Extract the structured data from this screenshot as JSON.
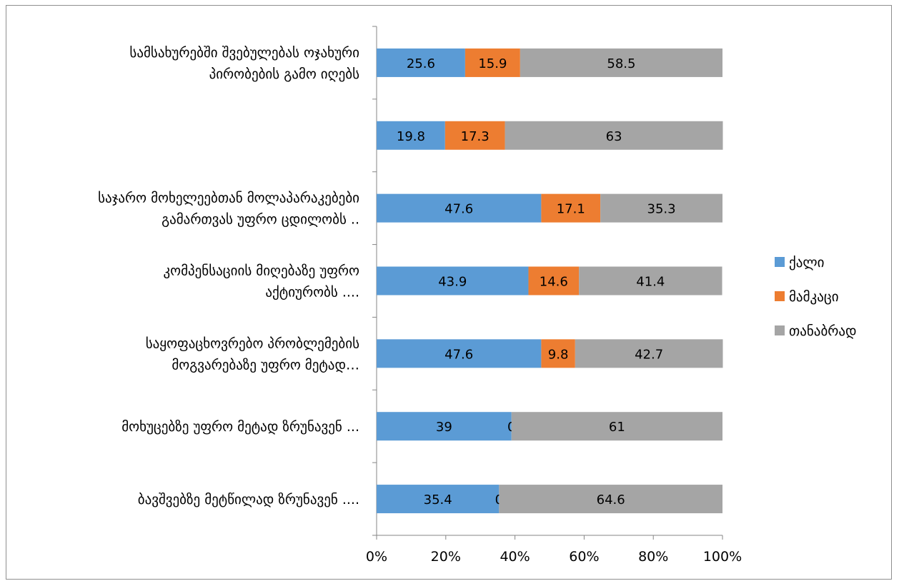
{
  "chart_data": {
    "type": "bar",
    "orientation": "horizontal",
    "stacked": "percent",
    "title": "",
    "xlabel": "",
    "ylabel": "",
    "xlim": [
      0,
      100
    ],
    "x_ticks": [
      "0%",
      "20%",
      "40%",
      "60%",
      "80%",
      "100%"
    ],
    "grid": false,
    "legend_position": "right",
    "categories": [
      [
        "სამსახურებში შვებულებას ოჯახური",
        "პირობების გამო იღებს"
      ],
      [],
      [
        "საჯარო მოხელეებთან მოლაპარაკებები",
        "გამართვას უფრო ცდილობს .."
      ],
      [
        "კომპენსაციის მიღებაზე უფრო",
        "აქტიურობს ...."
      ],
      [
        "საყოფაცხოვრებო პრობლემების",
        "მოგვარებაზე უფრო მეტად…"
      ],
      [
        "მოხუცებზე უფრო მეტად ზრუნავენ  ..."
      ],
      [
        "ბავშვებზე მეტწილად ზრუნავენ ...."
      ]
    ],
    "series": [
      {
        "name": "ქალი",
        "color": "#5b9bd5",
        "values": [
          25.6,
          19.8,
          47.6,
          43.9,
          47.6,
          39,
          35.4
        ]
      },
      {
        "name": "მამკაცი",
        "color": "#ed7d31",
        "values": [
          15.9,
          17.3,
          17.1,
          14.6,
          9.8,
          0,
          0
        ]
      },
      {
        "name": "თანაბრად",
        "color": "#a5a5a5",
        "values": [
          58.5,
          63,
          35.3,
          41.4,
          42.7,
          61,
          64.6
        ]
      }
    ]
  }
}
